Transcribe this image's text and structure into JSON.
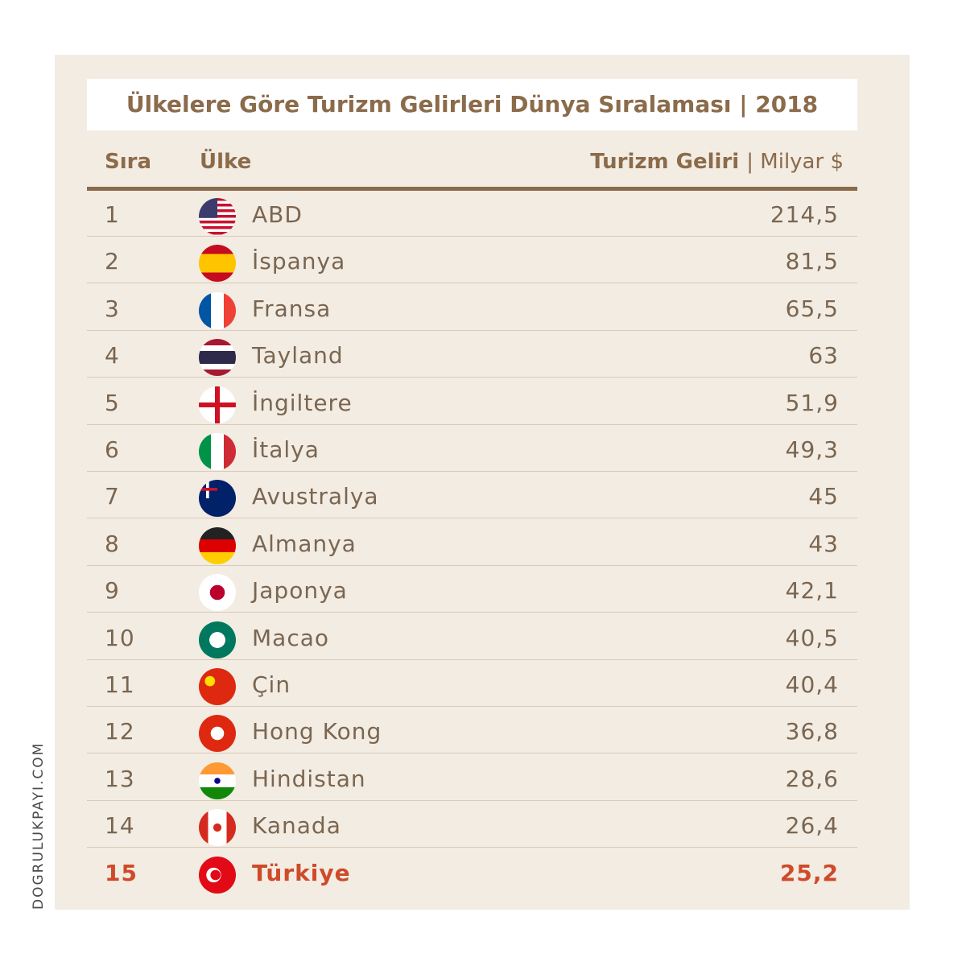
{
  "title": "Ülkelere Göre Turizm Gelirleri Dünya Sıralaması | 2018",
  "header": {
    "rank": "Sıra",
    "country": "Ülke",
    "revenue": "Turizm Geliri",
    "unit": "| Milyar $"
  },
  "rows": [
    [
      "1",
      "ABD",
      "214,5"
    ],
    [
      "2",
      "İspanya",
      "81,5"
    ],
    [
      "3",
      "Fransa",
      "65,5"
    ],
    [
      "4",
      "Tayland",
      "63"
    ],
    [
      "5",
      "İngiltere",
      "51,9"
    ],
    [
      "6",
      "İtalya",
      "49,3"
    ],
    [
      "7",
      "Avustralya",
      "45"
    ],
    [
      "8",
      "Almanya",
      "43"
    ],
    [
      "9",
      "Japonya",
      "42,1"
    ],
    [
      "10",
      "Macao",
      "40,5"
    ],
    [
      "11",
      "Çin",
      "40,4"
    ],
    [
      "12",
      "Hong Kong",
      "36,8"
    ],
    [
      "13",
      "Hindistan",
      "28,6"
    ],
    [
      "14",
      "Kanada",
      "26,4"
    ],
    [
      "15",
      "Türkiye",
      "25,2"
    ]
  ],
  "watermark": "DOGRULUKPAYI.COM"
}
